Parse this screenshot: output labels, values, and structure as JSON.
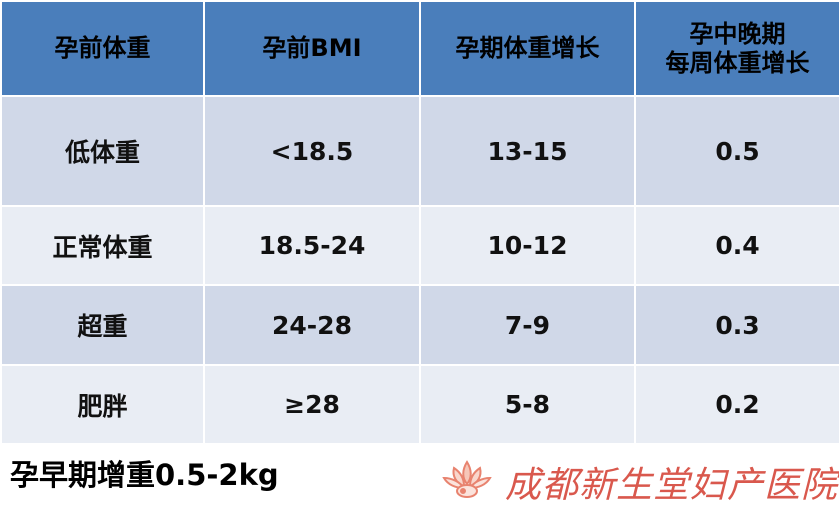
{
  "table": {
    "headers": [
      "孕前体重",
      "孕前BMI",
      "孕期体重增长",
      "孕中晚期\n每周体重增长"
    ],
    "header_line1": "孕中晚期",
    "header_line2": "每周体重增长",
    "rows": [
      [
        "低体重",
        "<18.5",
        "13-15",
        "0.5"
      ],
      [
        "正常体重",
        "18.5-24",
        "10-12",
        "0.4"
      ],
      [
        "超重",
        "24-28",
        "7-9",
        "0.3"
      ],
      [
        "肥胖",
        "≥28",
        "5-8",
        "0.2"
      ]
    ]
  },
  "footer": {
    "note": "孕早期增重0.5-2kg",
    "hospital_name": "成都新生堂妇产医院"
  },
  "colors": {
    "header_bg": "#4a7ebb",
    "row_dark": "#d0d8e8",
    "row_light": "#e9edf4",
    "logo_red": "#d33c2e"
  }
}
